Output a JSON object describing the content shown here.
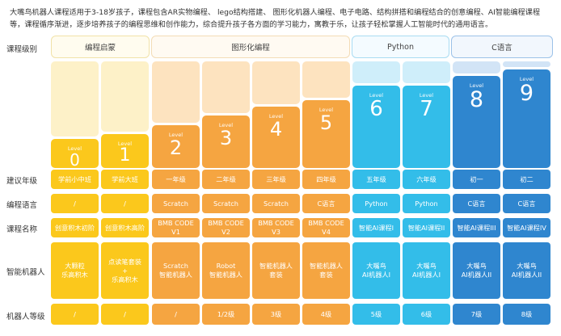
{
  "intro": "大嘴鸟机器人课程适用于3-18岁孩子，课程包含AR实物编程、 lego结构搭建、 图形化机器人编程、电子电路、结构拼搭和编程结合的创意编程、AI智能编程课程等，课程循序渐进，逐步培养孩子的编程思维和创作能力，综合提升孩子各方面的学习能力，寓教于乐，让孩子轻松掌握人工智能时代的通用语言。",
  "labels": {
    "level": "课程级别",
    "grade": "建议年级",
    "language": "编程语言",
    "course": "课程名称",
    "robot": "智能机器人",
    "robot_level": "机器人等级"
  },
  "groups": [
    {
      "name": "编程启蒙"
    },
    {
      "name": "图形化编程"
    },
    {
      "name": "Python"
    },
    {
      "name": "C语言"
    }
  ],
  "level_prefix": "Level",
  "levels": [
    {
      "num": "0",
      "grade": "学前小中班",
      "language": "/",
      "course": "创意积木初阶",
      "robot_l1": "大颗粒",
      "robot_l2": "乐高积木",
      "robot_l3": "",
      "robot_level": "/"
    },
    {
      "num": "1",
      "grade": "学前大班",
      "language": "/",
      "course": "创意积木高阶",
      "robot_l1": "点读笔套装",
      "robot_l2": "+",
      "robot_l3": "乐高积木",
      "robot_level": "/"
    },
    {
      "num": "2",
      "grade": "一年级",
      "language": "Scratch",
      "course": "BMB CODE V1",
      "robot_l1": "Scratch",
      "robot_l2": "智能机器人",
      "robot_l3": "",
      "robot_level": "/"
    },
    {
      "num": "3",
      "grade": "二年级",
      "language": "Scratch",
      "course": "BMB CODE V2",
      "robot_l1": "Robot",
      "robot_l2": "智能机器人",
      "robot_l3": "",
      "robot_level": "1/2级"
    },
    {
      "num": "4",
      "grade": "三年级",
      "language": "Scratch",
      "course": "BMB CODE V3",
      "robot_l1": "智能机器人",
      "robot_l2": "套装",
      "robot_l3": "",
      "robot_level": "3级"
    },
    {
      "num": "5",
      "grade": "四年级",
      "language": "C语言",
      "course": "BMB CODE V4",
      "robot_l1": "智能机器人",
      "robot_l2": "套装",
      "robot_l3": "",
      "robot_level": "4级"
    },
    {
      "num": "6",
      "grade": "五年级",
      "language": "Python",
      "course": "智能AI课程I",
      "robot_l1": "大嘴鸟",
      "robot_l2": "AI机器人I",
      "robot_l3": "",
      "robot_level": "5级"
    },
    {
      "num": "7",
      "grade": "六年级",
      "language": "Python",
      "course": "智能AI课程II",
      "robot_l1": "大嘴鸟",
      "robot_l2": "AI机器人I",
      "robot_l3": "",
      "robot_level": "6级"
    },
    {
      "num": "8",
      "grade": "初一",
      "language": "C语言",
      "course": "智能AI课程III",
      "robot_l1": "大嘴鸟",
      "robot_l2": "AI机器人II",
      "robot_l3": "",
      "robot_level": "7级"
    },
    {
      "num": "9",
      "grade": "初二",
      "language": "C语言",
      "course": "智能AI课程IV",
      "robot_l1": "大嘴鸟",
      "robot_l2": "AI机器人II",
      "robot_l3": "",
      "robot_level": "8级"
    }
  ],
  "colors": {
    "yellow": "#fbc81c",
    "orange": "#f5a541",
    "cyan": "#33bde9",
    "blue": "#2f86cf"
  }
}
